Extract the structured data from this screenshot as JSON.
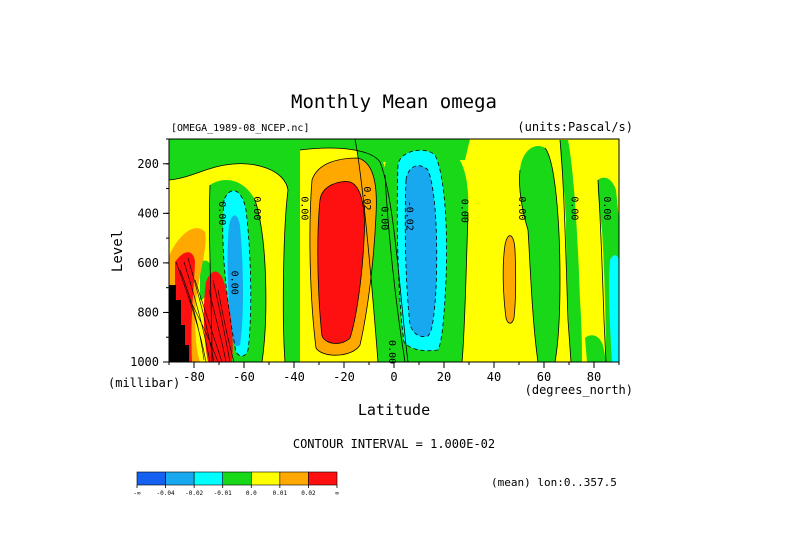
{
  "chart_data": {
    "type": "heatmap",
    "title": "Monthly Mean omega",
    "subtitle_left": "[OMEGA_1989-08_NCEP.nc]",
    "subtitle_right": "(units:Pascal/s)",
    "xlabel": "Latitude",
    "ylabel": "Level",
    "x_units": "(degrees_north)",
    "y_units": "(millibar)",
    "xlim": [
      -90,
      90
    ],
    "ylim": [
      1000,
      100
    ],
    "y_scale": "linear, inverted (pressure)",
    "x_ticks": [
      -80,
      -60,
      -40,
      -20,
      0,
      20,
      40,
      60,
      80
    ],
    "y_ticks": [
      200,
      400,
      600,
      800,
      1000
    ],
    "contour_interval_text": "CONTOUR INTERVAL = 1.000E-02",
    "region_text": "(mean) lon:0..357.5",
    "colorbar_labels": [
      "-∞",
      "-0.04",
      "-0.02",
      "-0.01",
      "0.0",
      "0.01",
      "0.02",
      "∞"
    ],
    "colorbar_colors": [
      "#1560f0",
      "#18a8f0",
      "#00ffff",
      "#18d818",
      "#ffff00",
      "#ffa800",
      "#ff1010"
    ],
    "contour_labels": [
      {
        "lat": -70,
        "p": 400,
        "text": "0.00"
      },
      {
        "lat": -56,
        "p": 380,
        "text": "0.00"
      },
      {
        "lat": -37,
        "p": 380,
        "text": "0.00"
      },
      {
        "lat": -12,
        "p": 340,
        "text": "0.02"
      },
      {
        "lat": -5,
        "p": 420,
        "text": "0.00"
      },
      {
        "lat": 5,
        "p": 410,
        "text": "-0.02"
      },
      {
        "lat": 27,
        "p": 390,
        "text": "0.00"
      },
      {
        "lat": 50,
        "p": 380,
        "text": "0.00"
      },
      {
        "lat": 71,
        "p": 380,
        "text": "0.00"
      },
      {
        "lat": 84,
        "p": 380,
        "text": "0.00"
      },
      {
        "lat": -65,
        "p": 680,
        "text": "0.00"
      },
      {
        "lat": -2,
        "p": 960,
        "text": "0.00"
      }
    ]
  }
}
